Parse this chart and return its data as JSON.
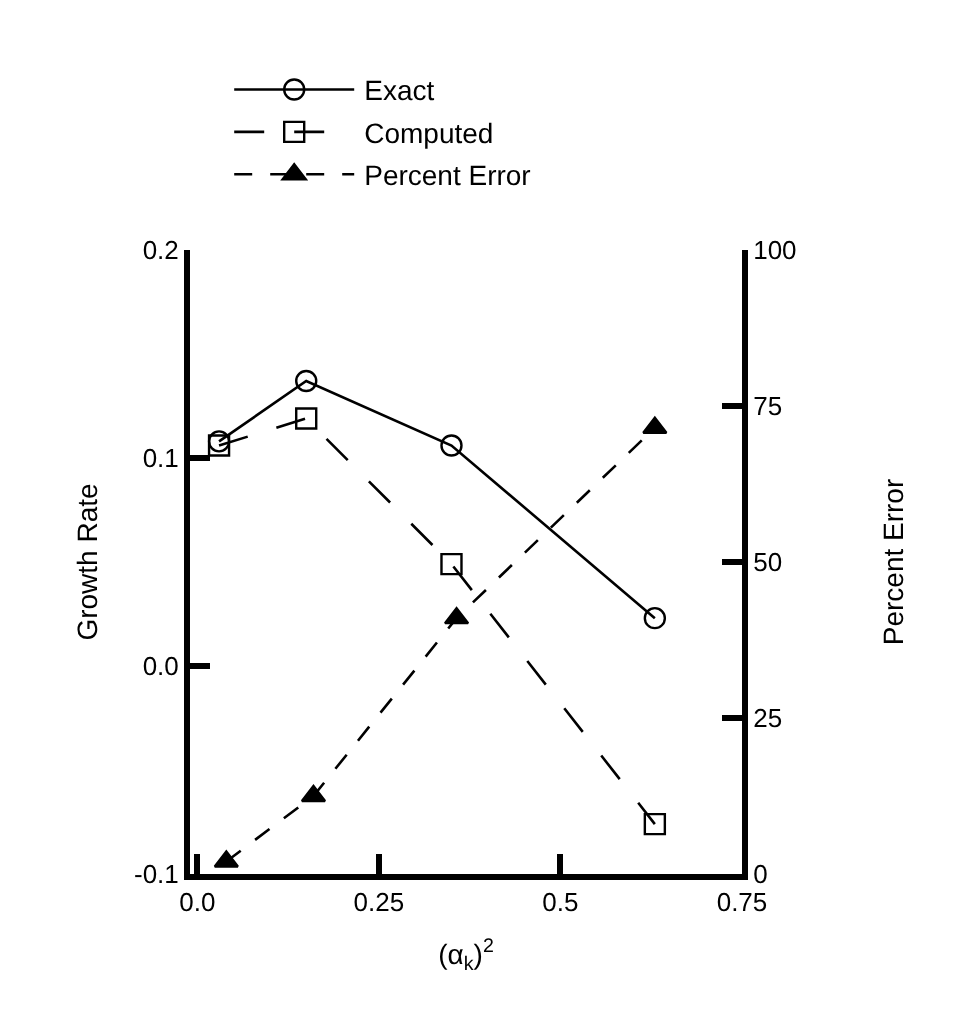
{
  "chart_data": {
    "type": "line",
    "xlabel": "(α$_{k}$)$^{2}$",
    "ylabel": "Growth Rate",
    "y2label": "Percent Error",
    "xlim": [
      -0.01,
      0.75
    ],
    "xticks": [
      {
        "value": 0,
        "label": "0.0"
      },
      0.25,
      0.5,
      0.75
    ],
    "ylim": [
      -0.1,
      0.2
    ],
    "yticks": [
      -0.1,
      {
        "value": 0,
        "label": "0.0"
      },
      0.1,
      0.2
    ],
    "y2lim": [
      0,
      100
    ],
    "y2ticks": [
      0,
      25,
      50,
      75,
      100
    ],
    "legend": "top",
    "series": [
      {
        "name": "Exact",
        "color": "#000000",
        "x": [
          0.03,
          0.15,
          0.35,
          0.63
        ],
        "values": [
          0.108,
          0.137,
          0.106,
          0.023
        ],
        "marker": "circle",
        "line_style": "solid"
      },
      {
        "name": "Computed",
        "color": "#000000",
        "x": [
          0.03,
          0.15,
          0.35,
          0.63
        ],
        "values": [
          0.106,
          0.119,
          0.049,
          -0.076
        ],
        "marker": "square",
        "line_style": "dashed"
      },
      {
        "name": "Percent Error",
        "color": "#000000",
        "x": [
          0.04,
          0.16,
          0.357,
          0.63
        ],
        "values": [
          2,
          12.5,
          41,
          71.5
        ],
        "marker": "triangle",
        "line_style": "dashed",
        "axis": "y2"
      }
    ]
  }
}
